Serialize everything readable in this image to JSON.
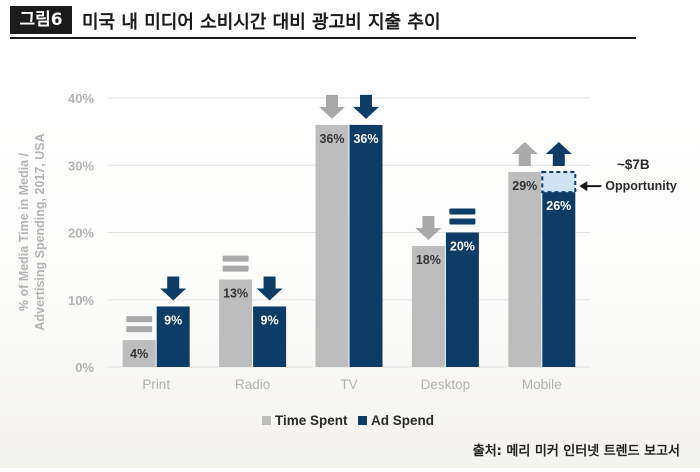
{
  "header": {
    "fig_tag": "그림6",
    "title": "미국 내 미디어 소비시간 대비 광고비 지출 추이"
  },
  "source": "출처: 메리 미커 인터넷 트렌드 보고서",
  "colors": {
    "time_spent": "#bdbdbd",
    "ad_spend": "#0d3d66",
    "grid": "#e2e2e2",
    "axis_text": "#b3b3b3",
    "opportunity_fill": "#cfe3f4"
  },
  "chart_data": {
    "type": "bar",
    "ylabel": "% of Media Time in Media / Advertising Spending, 2017, USA",
    "ylabel_lines": [
      "% of Media Time in Media /",
      "Advertising Spending, 2017, USA"
    ],
    "ylim": [
      0,
      40
    ],
    "yticks": [
      0,
      10,
      20,
      30,
      40
    ],
    "ytick_labels": [
      "0%",
      "10%",
      "20%",
      "30%",
      "40%"
    ],
    "grid": true,
    "legend_position": "bottom",
    "categories": [
      "Print",
      "Radio",
      "TV",
      "Desktop",
      "Mobile"
    ],
    "series": [
      {
        "name": "Time Spent",
        "values": [
          4,
          13,
          36,
          18,
          29
        ],
        "labels": [
          "4%",
          "13%",
          "36%",
          "18%",
          "29%"
        ],
        "trend": [
          "flat",
          "flat",
          "down",
          "down",
          "up"
        ]
      },
      {
        "name": "Ad Spend",
        "values": [
          9,
          9,
          36,
          20,
          26
        ],
        "labels": [
          "9%",
          "9%",
          "36%",
          "20%",
          "26%"
        ],
        "trend": [
          "down",
          "down",
          "down",
          "flat",
          "up"
        ]
      }
    ],
    "annotation": {
      "category": "Mobile",
      "from": 26,
      "to": 29,
      "label_line1": "~$7B",
      "label_line2": "Opportunity"
    }
  }
}
